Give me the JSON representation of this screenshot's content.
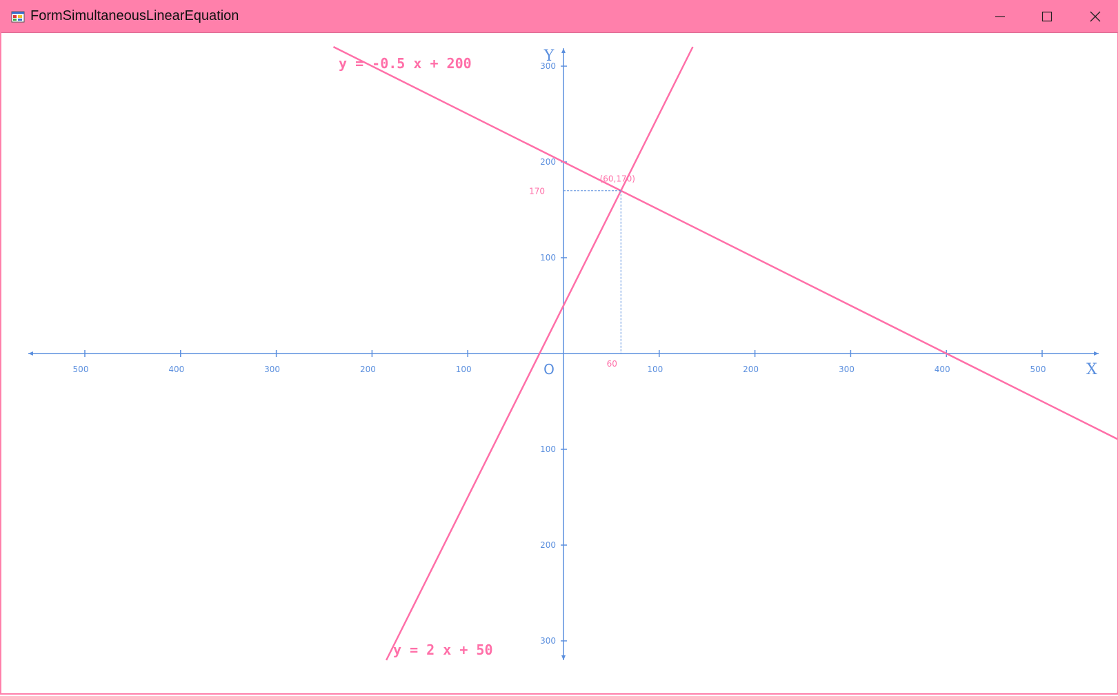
{
  "window": {
    "title": "FormSimultaneousLinearEquation",
    "titlebar_color": "#ff80ab",
    "icon": "winforms-app-icon",
    "controls": [
      "minimize-icon",
      "maximize-icon",
      "close-icon"
    ]
  },
  "graph": {
    "axis_color": "#5b8fde",
    "line_color": "#ff6fa8",
    "x_axis_label": "X",
    "y_axis_label": "Y",
    "origin_label": "O",
    "x_ticks": [
      -500,
      -400,
      -300,
      -200,
      -100,
      100,
      200,
      300,
      400,
      500
    ],
    "x_tick_labels": [
      "500",
      "400",
      "300",
      "200",
      "100",
      "100",
      "200",
      "300",
      "400",
      "500"
    ],
    "y_ticks": [
      300,
      200,
      100,
      -100,
      -200,
      -300
    ],
    "y_tick_labels": [
      "300",
      "200",
      "100",
      "100",
      "200",
      "300"
    ],
    "x_range": [
      -540,
      560
    ],
    "y_range": [
      -320,
      320
    ],
    "equations": [
      {
        "label": "y = -0.5 x + 200",
        "slope": -0.5,
        "intercept": 200
      },
      {
        "label": "y = 2 x + 50",
        "slope": 2,
        "intercept": 50
      }
    ],
    "intersection": {
      "x": 60,
      "y": 170,
      "label": "(60,170)",
      "x_label": "60",
      "y_label": "170"
    }
  }
}
